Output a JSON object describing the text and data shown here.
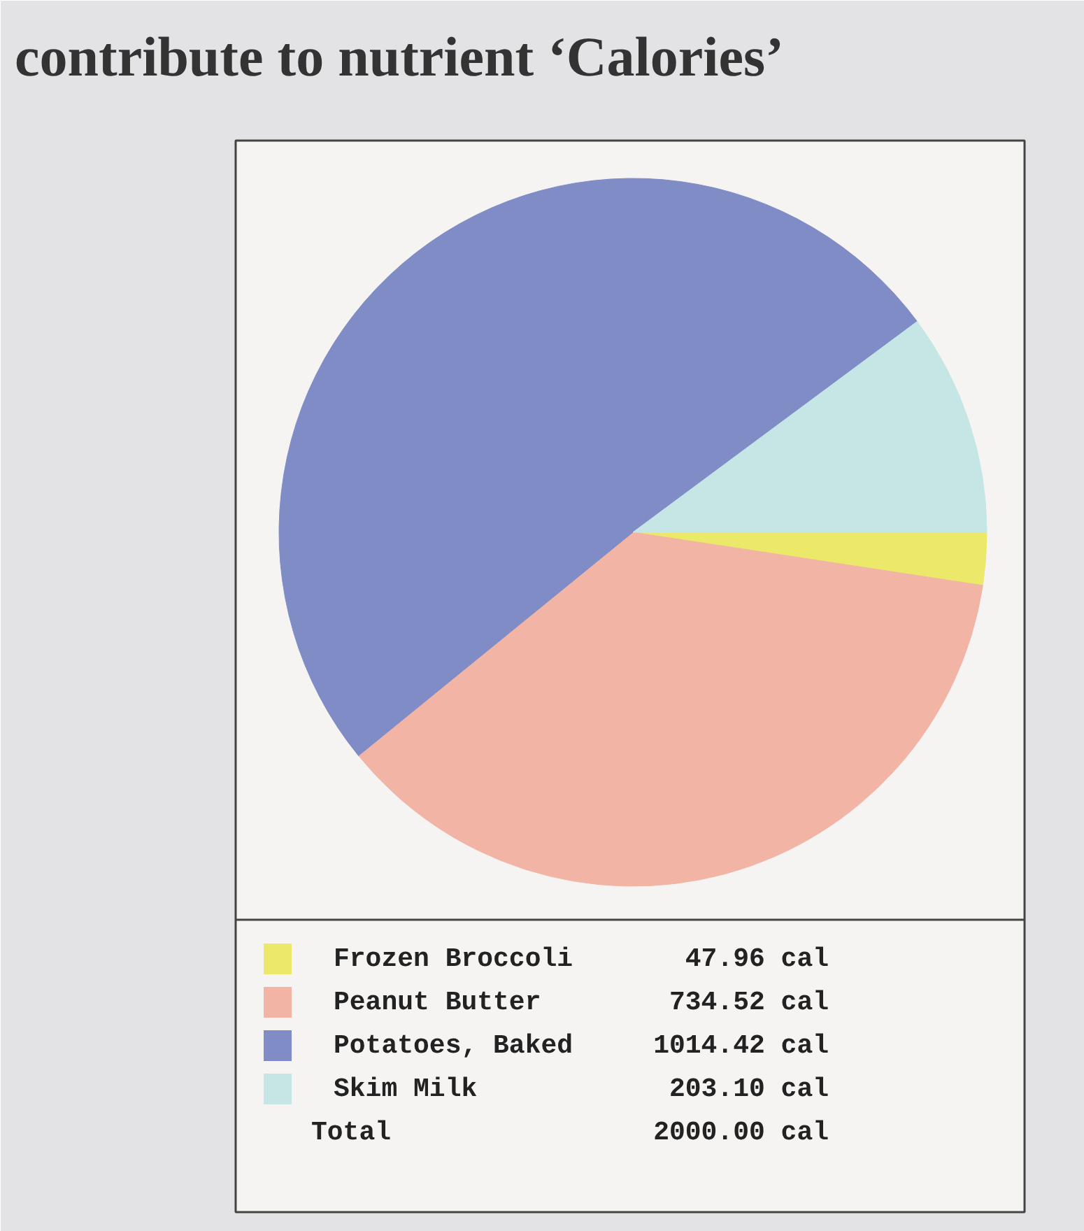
{
  "chart_data": {
    "type": "pie",
    "title": "contribute to nutrient ‘Calories’",
    "categories": [
      "Frozen Broccoli",
      "Peanut Butter",
      "Potatoes, Baked",
      "Skim Milk"
    ],
    "values": [
      47.96,
      734.52,
      1014.42,
      203.1
    ],
    "colors": [
      "#ece86a",
      "#f2b5a5",
      "#808cc6",
      "#c6e6e6"
    ],
    "value_labels": [
      "47.96 cal",
      "734.52 cal",
      "1014.42 cal",
      "203.10 cal"
    ],
    "totals": [
      "2000.00 cal"
    ],
    "annotations": [
      "Total"
    ],
    "legend": "bottom"
  }
}
